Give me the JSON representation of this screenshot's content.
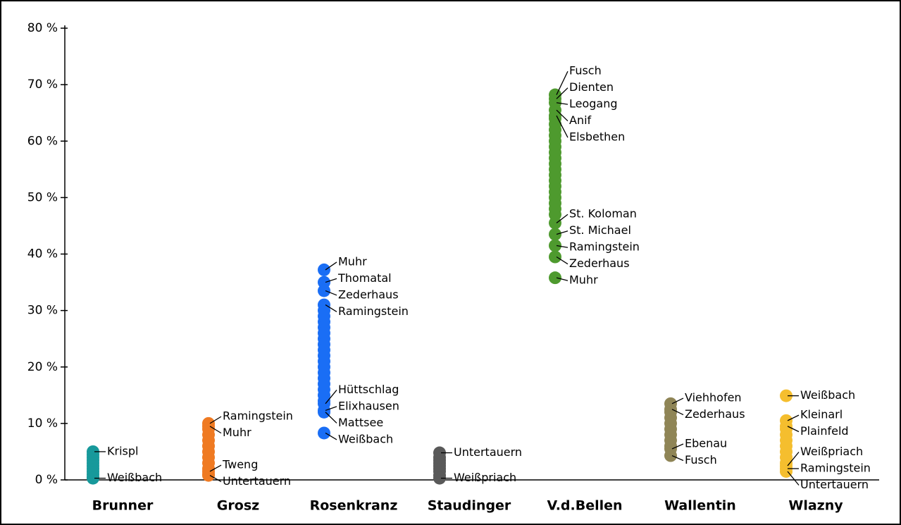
{
  "chart_data": {
    "type": "strip",
    "ylim": [
      0,
      80
    ],
    "yticks": [
      {
        "value": 0,
        "label": "0 %"
      },
      {
        "value": 10,
        "label": "10 %"
      },
      {
        "value": 20,
        "label": "20 %"
      },
      {
        "value": 30,
        "label": "30 %"
      },
      {
        "value": 40,
        "label": "40 %"
      },
      {
        "value": 50,
        "label": "50 %"
      },
      {
        "value": 60,
        "label": "60 %"
      },
      {
        "value": 70,
        "label": "70 %"
      },
      {
        "value": 80,
        "label": "80 %"
      }
    ],
    "series": [
      {
        "name": "Brunner",
        "color": "#17999b",
        "values": [
          0.5,
          1,
          1.5,
          2,
          2.5,
          3,
          3.5,
          4,
          4.5
        ],
        "points": [
          {
            "label": "Krispl",
            "value": 5
          },
          {
            "label": "Weißbach",
            "value": 0.3
          }
        ]
      },
      {
        "name": "Grosz",
        "color": "#ef7a22",
        "values": [
          1,
          2,
          3,
          4,
          5,
          6,
          7,
          8,
          9
        ],
        "points": [
          {
            "label": "Ramingstein",
            "value": 10
          },
          {
            "label": "Muhr",
            "value": 9.5
          },
          {
            "label": "Tweng",
            "value": 1.5
          },
          {
            "label": "Untertauern",
            "value": 0.8
          }
        ]
      },
      {
        "name": "Rosenkranz",
        "color": "#1a6ef5",
        "values": [
          14,
          15,
          16,
          17,
          18,
          19,
          20,
          21,
          22,
          23,
          24,
          25,
          26,
          27,
          28,
          29,
          30
        ],
        "points": [
          {
            "label": "Muhr",
            "value": 37.2
          },
          {
            "label": "Thomatal",
            "value": 35
          },
          {
            "label": "Zederhaus",
            "value": 33.5
          },
          {
            "label": "Ramingstein",
            "value": 31
          },
          {
            "label": "Hüttschlag",
            "value": 13.5
          },
          {
            "label": "Elixhausen",
            "value": 12.3
          },
          {
            "label": "Mattsee",
            "value": 12
          },
          {
            "label": "Weißbach",
            "value": 8.3
          }
        ]
      },
      {
        "name": "Staudinger",
        "color": "#595959",
        "values": [
          0.8,
          1.5,
          2,
          2.5,
          3,
          3.5,
          4
        ],
        "points": [
          {
            "label": "Untertauern",
            "value": 4.8
          },
          {
            "label": "Weißpriach",
            "value": 0.3
          }
        ]
      },
      {
        "name": "V.d.Bellen",
        "color": "#4e9a2e",
        "values": [
          47,
          48,
          49,
          50,
          51,
          52,
          53,
          54,
          55,
          56,
          57,
          58,
          59,
          60,
          61,
          62,
          63,
          64
        ],
        "points": [
          {
            "label": "Fusch",
            "value": 68.2
          },
          {
            "label": "Dienten",
            "value": 67.5
          },
          {
            "label": "Leogang",
            "value": 66.8
          },
          {
            "label": "Anif",
            "value": 65.5
          },
          {
            "label": "Elsbethen",
            "value": 64.5
          },
          {
            "label": "St. Koloman",
            "value": 45.5
          },
          {
            "label": "St. Michael",
            "value": 43.5
          },
          {
            "label": "Ramingstein",
            "value": 41.5
          },
          {
            "label": "Zederhaus",
            "value": 39.5
          },
          {
            "label": "Muhr",
            "value": 35.8
          }
        ]
      },
      {
        "name": "Wallentin",
        "color": "#8f8556",
        "values": [
          6,
          7,
          8,
          9,
          10,
          11,
          12
        ],
        "points": [
          {
            "label": "Viehhofen",
            "value": 13.5
          },
          {
            "label": "Zederhaus",
            "value": 12.5
          },
          {
            "label": "Ebenau",
            "value": 5.5
          },
          {
            "label": "Fusch",
            "value": 4.3
          }
        ]
      },
      {
        "name": "Wlazny",
        "color": "#f5be2e",
        "values": [
          3,
          4,
          5,
          6,
          7,
          8,
          9
        ],
        "points": [
          {
            "label": "Weißbach",
            "value": 14.9
          },
          {
            "label": "Kleinarl",
            "value": 10.5
          },
          {
            "label": "Plainfeld",
            "value": 9.5
          },
          {
            "label": "Weißpriach",
            "value": 2.5
          },
          {
            "label": "Ramingstein",
            "value": 2
          },
          {
            "label": "Untertauern",
            "value": 1.5
          }
        ]
      }
    ]
  }
}
